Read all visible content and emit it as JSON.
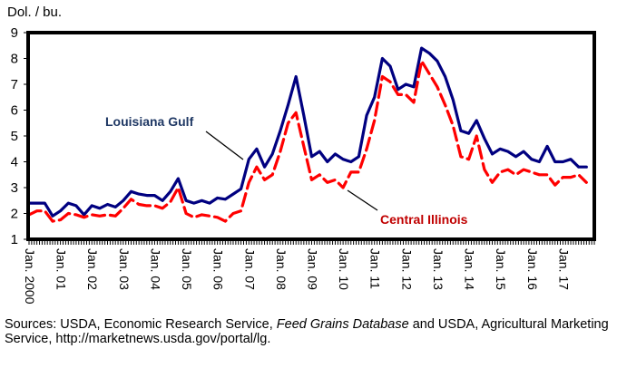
{
  "chart_data": {
    "type": "line",
    "title": "",
    "ylabel": "Dol. / bu.",
    "xlabel": "",
    "ylim": [
      1,
      9
    ],
    "yticks": [
      "1",
      "2",
      "3",
      "4",
      "5",
      "6",
      "7",
      "8",
      "9"
    ],
    "xlim": [
      2000.0,
      2018.0
    ],
    "xticks": [
      {
        "x": 2000,
        "label": "Jan. 2000"
      },
      {
        "x": 2001,
        "label": "Jan. 01"
      },
      {
        "x": 2002,
        "label": "Jan. 02"
      },
      {
        "x": 2003,
        "label": "Jan. 03"
      },
      {
        "x": 2004,
        "label": "Jan. 04"
      },
      {
        "x": 2005,
        "label": "Jan. 05"
      },
      {
        "x": 2006,
        "label": "Jan. 06"
      },
      {
        "x": 2007,
        "label": "Jan. 07"
      },
      {
        "x": 2008,
        "label": "Jan. 08"
      },
      {
        "x": 2009,
        "label": "Jan. 09"
      },
      {
        "x": 2010,
        "label": "Jan. 10"
      },
      {
        "x": 2011,
        "label": "Jan. 11"
      },
      {
        "x": 2012,
        "label": "Jan. 12"
      },
      {
        "x": 2013,
        "label": "Jan. 13"
      },
      {
        "x": 2014,
        "label": "Jan. 14"
      },
      {
        "x": 2015,
        "label": "Jan. 15"
      },
      {
        "x": 2016,
        "label": "Jan. 16"
      },
      {
        "x": 2017,
        "label": "Jan. 17"
      }
    ],
    "grid": false,
    "series": [
      {
        "name": "Louisiana Gulf",
        "color": "#000080",
        "style": "solid",
        "x": [
          2000.0,
          2000.25,
          2000.5,
          2000.75,
          2001.0,
          2001.25,
          2001.5,
          2001.75,
          2002.0,
          2002.25,
          2002.5,
          2002.75,
          2003.0,
          2003.25,
          2003.5,
          2003.75,
          2004.0,
          2004.25,
          2004.5,
          2004.75,
          2005.0,
          2005.25,
          2005.5,
          2005.75,
          2006.0,
          2006.25,
          2006.5,
          2006.75,
          2007.0,
          2007.25,
          2007.5,
          2007.75,
          2008.0,
          2008.25,
          2008.5,
          2008.75,
          2009.0,
          2009.25,
          2009.5,
          2009.75,
          2010.0,
          2010.25,
          2010.5,
          2010.75,
          2011.0,
          2011.25,
          2011.5,
          2011.75,
          2012.0,
          2012.25,
          2012.5,
          2012.75,
          2013.0,
          2013.25,
          2013.5,
          2013.75,
          2014.0,
          2014.25,
          2014.5,
          2014.75,
          2015.0,
          2015.25,
          2015.5,
          2015.75,
          2016.0,
          2016.25,
          2016.5,
          2016.75,
          2017.0,
          2017.25,
          2017.5,
          2017.75
        ],
        "values": [
          2.4,
          2.4,
          2.4,
          1.9,
          2.1,
          2.4,
          2.3,
          1.95,
          2.3,
          2.2,
          2.35,
          2.25,
          2.5,
          2.85,
          2.75,
          2.7,
          2.7,
          2.5,
          2.85,
          3.35,
          2.5,
          2.4,
          2.5,
          2.4,
          2.6,
          2.55,
          2.75,
          2.95,
          4.1,
          4.5,
          3.8,
          4.3,
          5.2,
          6.2,
          7.3,
          5.8,
          4.2,
          4.4,
          4.0,
          4.3,
          4.1,
          4.0,
          4.2,
          5.8,
          6.5,
          8.0,
          7.7,
          6.8,
          7.0,
          6.9,
          8.4,
          8.2,
          7.9,
          7.3,
          6.4,
          5.2,
          5.1,
          5.6,
          4.9,
          4.3,
          4.5,
          4.4,
          4.2,
          4.4,
          4.1,
          4.0,
          4.6,
          4.0,
          4.0,
          4.1,
          3.8,
          3.8
        ]
      },
      {
        "name": "Central Illinois",
        "color": "#ff0000",
        "style": "dashed",
        "x": [
          2000.0,
          2000.25,
          2000.5,
          2000.75,
          2001.0,
          2001.25,
          2001.5,
          2001.75,
          2002.0,
          2002.25,
          2002.5,
          2002.75,
          2003.0,
          2003.25,
          2003.5,
          2003.75,
          2004.0,
          2004.25,
          2004.5,
          2004.75,
          2005.0,
          2005.25,
          2005.5,
          2005.75,
          2006.0,
          2006.25,
          2006.5,
          2006.75,
          2007.0,
          2007.25,
          2007.5,
          2007.75,
          2008.0,
          2008.25,
          2008.5,
          2008.75,
          2009.0,
          2009.25,
          2009.5,
          2009.75,
          2010.0,
          2010.25,
          2010.5,
          2010.75,
          2011.0,
          2011.25,
          2011.5,
          2011.75,
          2012.0,
          2012.25,
          2012.5,
          2012.75,
          2013.0,
          2013.25,
          2013.5,
          2013.75,
          2014.0,
          2014.25,
          2014.5,
          2014.75,
          2015.0,
          2015.25,
          2015.5,
          2015.75,
          2016.0,
          2016.25,
          2016.5,
          2016.75,
          2017.0,
          2017.25,
          2017.5,
          2017.75
        ],
        "values": [
          1.95,
          2.1,
          2.1,
          1.7,
          1.75,
          2.0,
          1.95,
          1.85,
          1.95,
          1.9,
          1.95,
          1.9,
          2.2,
          2.55,
          2.35,
          2.3,
          2.3,
          2.2,
          2.45,
          3.0,
          2.0,
          1.85,
          1.95,
          1.9,
          1.85,
          1.7,
          2.0,
          2.1,
          3.2,
          3.8,
          3.3,
          3.5,
          4.4,
          5.5,
          5.9,
          4.6,
          3.3,
          3.5,
          3.2,
          3.3,
          3.0,
          3.6,
          3.6,
          4.5,
          5.6,
          7.3,
          7.1,
          6.6,
          6.6,
          6.3,
          7.9,
          7.4,
          6.9,
          6.2,
          5.4,
          4.2,
          4.1,
          5.0,
          3.7,
          3.2,
          3.6,
          3.7,
          3.5,
          3.7,
          3.6,
          3.5,
          3.5,
          3.1,
          3.4,
          3.4,
          3.5,
          3.2
        ]
      }
    ],
    "annotations": [
      {
        "text": "Louisiana Gulf",
        "color": "#1f3864",
        "points_to": "Louisiana Gulf",
        "at_x": 2007.0
      },
      {
        "text": "Central Illinois",
        "color": "#c00000",
        "points_to": "Central Illinois",
        "at_x": 2010.0
      }
    ]
  },
  "source_note": {
    "prefix": "Sources:  USDA, Economic Research Service, ",
    "italic": "Feed Grains Database",
    "suffix": " and USDA, Agricultural Marketing Service, http://marketnews.usda.gov/portal/lg."
  }
}
